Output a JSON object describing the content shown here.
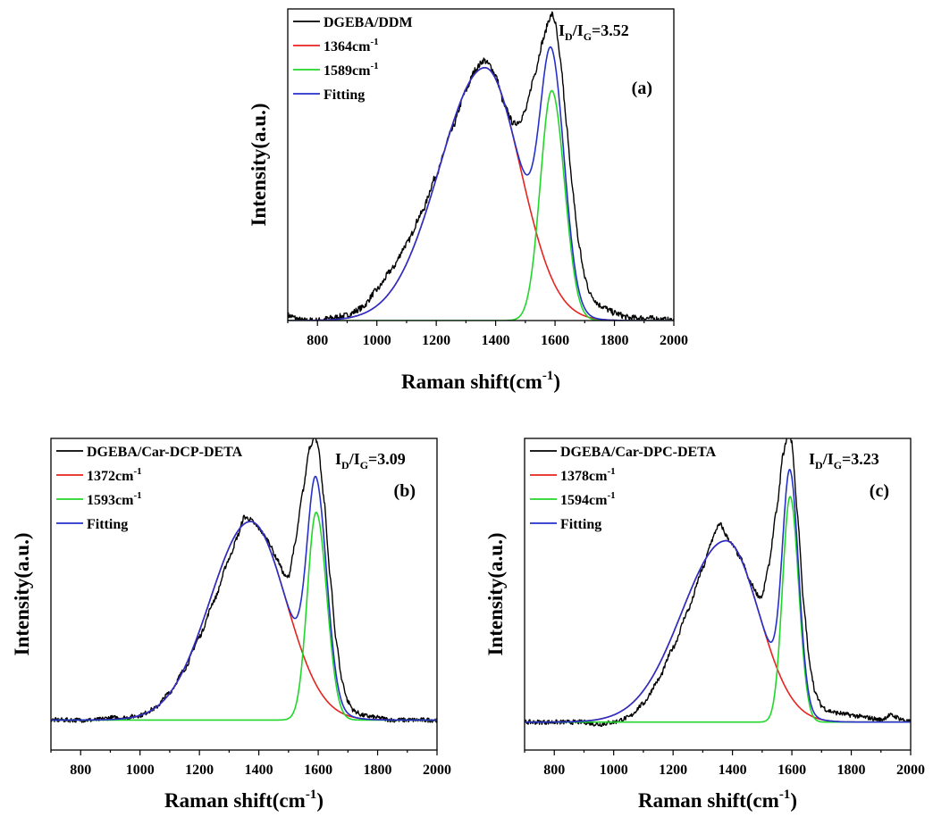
{
  "chart_data": [
    {
      "type": "line",
      "panel_label": "(a)",
      "ratio": {
        "main": "I",
        "sub1": "D",
        "slash": "/I",
        "sub2": "G",
        "value": "=3.52"
      },
      "xlabel": {
        "main": "Raman shift(cm",
        "sup": "-1",
        "tail": ")"
      },
      "ylabel": "Intensity(a.u.)",
      "xlim": [
        700,
        2000
      ],
      "x_ticks": [
        800,
        1000,
        1200,
        1400,
        1600,
        1800,
        2000
      ],
      "ylim": [
        0,
        1.22
      ],
      "y_ticks_shown": false,
      "legend": [
        {
          "label": "DGEBA/DDM",
          "sup": "",
          "color": "#000000"
        },
        {
          "label": "1364cm",
          "sup": "-1",
          "color": "#e8231f"
        },
        {
          "label": "1589cm",
          "sup": "-1",
          "color": "#22d62a"
        },
        {
          "label": "Fitting",
          "sup": "",
          "color": "#2531c9"
        }
      ],
      "series": [
        {
          "name": "DGEBA/DDM",
          "kind": "measured",
          "color": "#000000",
          "noise": 0.012,
          "x": [
            700,
            750,
            800,
            850,
            900,
            950,
            1000,
            1050,
            1100,
            1150,
            1200,
            1250,
            1300,
            1330,
            1360,
            1380,
            1400,
            1430,
            1460,
            1480,
            1500,
            1530,
            1560,
            1580,
            1590,
            1600,
            1620,
            1640,
            1660,
            1680,
            1700,
            1720,
            1750,
            1800,
            1850,
            1900,
            2000
          ],
          "y": [
            0.02,
            0.0,
            0.0,
            0.01,
            0.02,
            0.05,
            0.12,
            0.2,
            0.3,
            0.42,
            0.57,
            0.74,
            0.9,
            0.98,
            1.02,
            1.0,
            0.96,
            0.84,
            0.77,
            0.78,
            0.82,
            0.96,
            1.1,
            1.18,
            1.2,
            1.17,
            1.0,
            0.75,
            0.5,
            0.3,
            0.17,
            0.1,
            0.06,
            0.03,
            0.01,
            0.01,
            0.0
          ]
        },
        {
          "name": "1364cm-1",
          "kind": "band",
          "color": "#e8231f",
          "center": 1364,
          "height": 0.99,
          "hwhm_left": 180,
          "hwhm_right": 140
        },
        {
          "name": "1589cm-1",
          "kind": "band",
          "color": "#22d62a",
          "center": 1589,
          "height": 0.9,
          "hwhm_left": 45,
          "hwhm_right": 50
        },
        {
          "name": "Fitting",
          "kind": "sum",
          "color": "#2531c9"
        }
      ]
    },
    {
      "type": "line",
      "panel_label": "(b)",
      "ratio": {
        "main": "I",
        "sub1": "D",
        "slash": "/I",
        "sub2": "G",
        "value": "=3.09"
      },
      "xlabel": {
        "main": "Raman shift(cm",
        "sup": "-1",
        "tail": ")"
      },
      "ylabel": "Intensity(a.u.)",
      "xlim": [
        700,
        2000
      ],
      "x_ticks": [
        800,
        1000,
        1200,
        1400,
        1600,
        1800,
        2000
      ],
      "ylim": [
        -0.13,
        1.22
      ],
      "y_ticks_shown": false,
      "legend": [
        {
          "label": "DGEBA/Car-DCP-DETA",
          "sup": "",
          "color": "#000000"
        },
        {
          "label": "1372cm",
          "sup": "-1",
          "color": "#e8231f"
        },
        {
          "label": "1593cm",
          "sup": "-1",
          "color": "#22d62a"
        },
        {
          "label": "Fitting",
          "sup": "",
          "color": "#2531c9"
        }
      ],
      "series": [
        {
          "name": "DGEBA/Car-DCP-DETA",
          "kind": "measured",
          "color": "#000000",
          "noise": 0.01,
          "x": [
            700,
            750,
            800,
            850,
            900,
            950,
            1000,
            1050,
            1100,
            1150,
            1200,
            1250,
            1300,
            1330,
            1350,
            1370,
            1400,
            1430,
            1460,
            1490,
            1500,
            1520,
            1550,
            1570,
            1590,
            1600,
            1620,
            1640,
            1660,
            1680,
            1700,
            1720,
            1750,
            1800,
            1850,
            1900,
            2000
          ],
          "y": [
            0.0,
            0.0,
            0.0,
            0.0,
            0.01,
            0.01,
            0.02,
            0.05,
            0.12,
            0.22,
            0.36,
            0.52,
            0.7,
            0.8,
            0.88,
            0.87,
            0.83,
            0.78,
            0.7,
            0.62,
            0.62,
            0.75,
            1.0,
            1.18,
            1.23,
            1.18,
            0.95,
            0.62,
            0.35,
            0.17,
            0.08,
            0.04,
            0.02,
            0.01,
            0.0,
            0.0,
            0.0
          ]
        },
        {
          "name": "1372cm-1",
          "kind": "band",
          "color": "#e8231f",
          "center": 1372,
          "height": 0.86,
          "hwhm_left": 160,
          "hwhm_right": 140
        },
        {
          "name": "1593cm-1",
          "kind": "band",
          "color": "#22d62a",
          "center": 1593,
          "height": 0.9,
          "hwhm_left": 35,
          "hwhm_right": 42
        },
        {
          "name": "Fitting",
          "kind": "sum",
          "color": "#2531c9"
        }
      ]
    },
    {
      "type": "line",
      "panel_label": "(c)",
      "ratio": {
        "main": "I",
        "sub1": "D",
        "slash": "/I",
        "sub2": "G",
        "value": "=3.23"
      },
      "xlabel": {
        "main": "Raman shift(cm",
        "sup": "-1",
        "tail": ")"
      },
      "ylabel": "Intensity(a.u.)",
      "xlim": [
        700,
        2000
      ],
      "x_ticks": [
        800,
        1000,
        1200,
        1400,
        1600,
        1800,
        2000
      ],
      "ylim": [
        -0.12,
        1.22
      ],
      "y_ticks_shown": false,
      "legend": [
        {
          "label": "DGEBA/Car-DPC-DETA",
          "sup": "",
          "color": "#000000"
        },
        {
          "label": "1378cm",
          "sup": "-1",
          "color": "#e8231f"
        },
        {
          "label": "1594cm",
          "sup": "-1",
          "color": "#22d62a"
        },
        {
          "label": "Fitting",
          "sup": "",
          "color": "#2531c9"
        }
      ],
      "series": [
        {
          "name": "DGEBA/Car-DPC-DETA",
          "kind": "measured",
          "color": "#000000",
          "noise": 0.01,
          "x": [
            700,
            750,
            800,
            850,
            900,
            950,
            1000,
            1050,
            1100,
            1150,
            1200,
            1250,
            1300,
            1330,
            1350,
            1360,
            1380,
            1400,
            1430,
            1460,
            1490,
            1500,
            1520,
            1550,
            1570,
            1590,
            1600,
            1620,
            1640,
            1660,
            1680,
            1700,
            1720,
            1750,
            1800,
            1850,
            1900,
            1930,
            2000
          ],
          "y": [
            0.0,
            0.0,
            0.0,
            0.0,
            0.0,
            -0.01,
            0.0,
            0.02,
            0.08,
            0.18,
            0.32,
            0.48,
            0.66,
            0.78,
            0.84,
            0.85,
            0.8,
            0.76,
            0.7,
            0.6,
            0.54,
            0.54,
            0.66,
            0.92,
            1.15,
            1.26,
            1.2,
            0.88,
            0.5,
            0.25,
            0.12,
            0.07,
            0.05,
            0.04,
            0.03,
            0.02,
            0.01,
            0.03,
            0.0
          ]
        },
        {
          "name": "1378cm-1",
          "kind": "band",
          "color": "#e8231f",
          "center": 1378,
          "height": 0.78,
          "hwhm_left": 175,
          "hwhm_right": 130
        },
        {
          "name": "1594cm-1",
          "kind": "band",
          "color": "#22d62a",
          "center": 1594,
          "height": 0.97,
          "hwhm_left": 30,
          "hwhm_right": 34
        },
        {
          "name": "Fitting",
          "kind": "sum",
          "color": "#2531c9"
        }
      ]
    }
  ]
}
